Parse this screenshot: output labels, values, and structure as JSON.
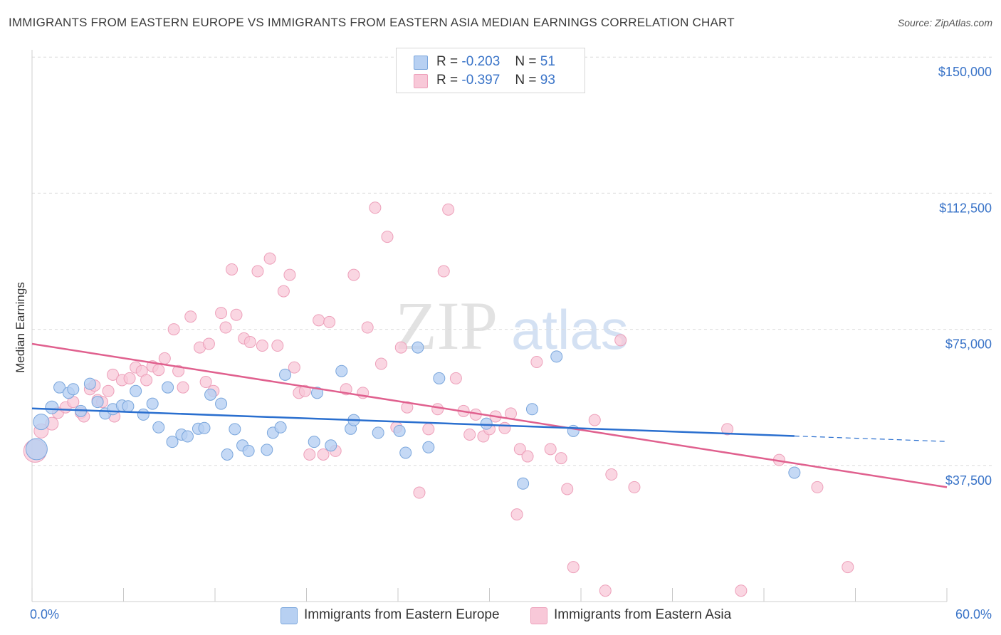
{
  "header": {
    "title": "IMMIGRANTS FROM EASTERN EUROPE VS IMMIGRANTS FROM EASTERN ASIA MEDIAN EARNINGS CORRELATION CHART",
    "source": "Source: ZipAtlas.com"
  },
  "watermark": {
    "zip": "ZIP",
    "atlas": "atlas"
  },
  "legend": {
    "rows": [
      {
        "r_label": "R =",
        "r_value": "-0.203",
        "n_label": "N =",
        "n_value": "51"
      },
      {
        "r_label": "R =",
        "r_value": "-0.397",
        "n_label": "N =",
        "n_value": "93"
      }
    ]
  },
  "bottom_legend": {
    "items": [
      {
        "label": "Immigrants from Eastern Europe"
      },
      {
        "label": "Immigrants from Eastern Asia"
      }
    ]
  },
  "colors": {
    "blue_fill": "#b7d0f2",
    "blue_stroke": "#7aa6dc",
    "blue_line": "#2a6fcf",
    "pink_fill": "#f8c8d8",
    "pink_stroke": "#eda0ba",
    "pink_line": "#e0608e",
    "axis_text": "#3a74c8",
    "grid": "#dcdcdc"
  },
  "chart_data": {
    "type": "scatter",
    "title": "IMMIGRANTS FROM EASTERN EUROPE VS IMMIGRANTS FROM EASTERN ASIA MEDIAN EARNINGS CORRELATION CHART",
    "xlabel": "",
    "ylabel": "Median Earnings",
    "xlim": [
      0,
      60
    ],
    "ylim": [
      0,
      152000
    ],
    "x_tick_labels": [
      {
        "value": 0,
        "label": "0.0%"
      },
      {
        "value": 60,
        "label": "60.0%"
      }
    ],
    "x_minor_ticks": [
      0,
      6,
      12,
      18,
      24,
      30,
      36,
      42,
      48,
      54,
      60
    ],
    "y_ticks": [
      {
        "value": 150000,
        "label": "$150,000"
      },
      {
        "value": 112500,
        "label": "$112,500"
      },
      {
        "value": 75000,
        "label": "$75,000"
      },
      {
        "value": 37500,
        "label": "$37,500"
      }
    ],
    "series": [
      {
        "name": "Immigrants from Eastern Europe",
        "color": "#b7d0f2",
        "trend": {
          "x1": 0,
          "y1": 53200,
          "x2": 50,
          "y2": 45600,
          "dash_to_x": 60,
          "dash_to_y": 44100
        },
        "points": [
          {
            "x": 0.3,
            "y": 42000,
            "s": 15
          },
          {
            "x": 0.6,
            "y": 49500,
            "s": 11
          },
          {
            "x": 1.3,
            "y": 53500,
            "s": 9
          },
          {
            "x": 1.8,
            "y": 59000,
            "s": 8
          },
          {
            "x": 2.4,
            "y": 57500,
            "s": 8
          },
          {
            "x": 2.7,
            "y": 58500,
            "s": 8
          },
          {
            "x": 3.2,
            "y": 52500,
            "s": 8
          },
          {
            "x": 3.8,
            "y": 60000,
            "s": 8
          },
          {
            "x": 4.3,
            "y": 55000,
            "s": 8
          },
          {
            "x": 4.8,
            "y": 51800,
            "s": 8
          },
          {
            "x": 5.3,
            "y": 53000,
            "s": 8
          },
          {
            "x": 5.9,
            "y": 54000,
            "s": 8
          },
          {
            "x": 6.3,
            "y": 53800,
            "s": 8
          },
          {
            "x": 6.8,
            "y": 58000,
            "s": 8
          },
          {
            "x": 7.3,
            "y": 51500,
            "s": 8
          },
          {
            "x": 7.9,
            "y": 54500,
            "s": 8
          },
          {
            "x": 8.3,
            "y": 48000,
            "s": 8
          },
          {
            "x": 8.9,
            "y": 59000,
            "s": 8
          },
          {
            "x": 9.2,
            "y": 44000,
            "s": 8
          },
          {
            "x": 9.8,
            "y": 46000,
            "s": 8
          },
          {
            "x": 10.2,
            "y": 45500,
            "s": 8
          },
          {
            "x": 10.9,
            "y": 47600,
            "s": 8
          },
          {
            "x": 11.3,
            "y": 47800,
            "s": 8
          },
          {
            "x": 11.7,
            "y": 57000,
            "s": 8
          },
          {
            "x": 12.4,
            "y": 54500,
            "s": 8
          },
          {
            "x": 12.8,
            "y": 40500,
            "s": 8
          },
          {
            "x": 13.3,
            "y": 47500,
            "s": 8
          },
          {
            "x": 13.8,
            "y": 43000,
            "s": 8
          },
          {
            "x": 14.2,
            "y": 41500,
            "s": 8
          },
          {
            "x": 15.4,
            "y": 41800,
            "s": 8
          },
          {
            "x": 15.8,
            "y": 46500,
            "s": 8
          },
          {
            "x": 16.3,
            "y": 48000,
            "s": 8
          },
          {
            "x": 16.6,
            "y": 62500,
            "s": 8
          },
          {
            "x": 18.5,
            "y": 44000,
            "s": 8
          },
          {
            "x": 18.7,
            "y": 57500,
            "s": 8
          },
          {
            "x": 19.6,
            "y": 43000,
            "s": 8
          },
          {
            "x": 20.3,
            "y": 63500,
            "s": 8
          },
          {
            "x": 20.9,
            "y": 47600,
            "s": 8
          },
          {
            "x": 21.1,
            "y": 50000,
            "s": 8
          },
          {
            "x": 22.7,
            "y": 46500,
            "s": 8
          },
          {
            "x": 24.1,
            "y": 47000,
            "s": 8
          },
          {
            "x": 24.5,
            "y": 41000,
            "s": 8
          },
          {
            "x": 25.3,
            "y": 70000,
            "s": 8
          },
          {
            "x": 26.0,
            "y": 42500,
            "s": 8
          },
          {
            "x": 26.7,
            "y": 61500,
            "s": 8
          },
          {
            "x": 29.8,
            "y": 49000,
            "s": 8
          },
          {
            "x": 32.2,
            "y": 32500,
            "s": 8
          },
          {
            "x": 32.8,
            "y": 53000,
            "s": 8
          },
          {
            "x": 34.4,
            "y": 67500,
            "s": 8
          },
          {
            "x": 35.5,
            "y": 47000,
            "s": 8
          },
          {
            "x": 50.0,
            "y": 35500,
            "s": 8
          }
        ]
      },
      {
        "name": "Immigrants from Eastern Asia",
        "color": "#f8c8d8",
        "trend": {
          "x1": 0,
          "y1": 71000,
          "x2": 60,
          "y2": 31500
        },
        "points": [
          {
            "x": 0.2,
            "y": 41500,
            "s": 16
          },
          {
            "x": 0.6,
            "y": 47000,
            "s": 10
          },
          {
            "x": 1.3,
            "y": 49000,
            "s": 9
          },
          {
            "x": 1.7,
            "y": 52000,
            "s": 8
          },
          {
            "x": 2.2,
            "y": 53500,
            "s": 8
          },
          {
            "x": 2.7,
            "y": 55000,
            "s": 8
          },
          {
            "x": 3.2,
            "y": 52000,
            "s": 8
          },
          {
            "x": 3.4,
            "y": 51000,
            "s": 8
          },
          {
            "x": 3.8,
            "y": 58500,
            "s": 8
          },
          {
            "x": 4.1,
            "y": 59500,
            "s": 8
          },
          {
            "x": 4.3,
            "y": 55500,
            "s": 8
          },
          {
            "x": 4.6,
            "y": 55000,
            "s": 8
          },
          {
            "x": 5.0,
            "y": 58000,
            "s": 8
          },
          {
            "x": 5.4,
            "y": 51000,
            "s": 8
          },
          {
            "x": 5.3,
            "y": 62500,
            "s": 8
          },
          {
            "x": 5.9,
            "y": 61000,
            "s": 8
          },
          {
            "x": 6.4,
            "y": 61500,
            "s": 8
          },
          {
            "x": 6.8,
            "y": 64500,
            "s": 8
          },
          {
            "x": 7.2,
            "y": 63500,
            "s": 8
          },
          {
            "x": 7.5,
            "y": 61000,
            "s": 8
          },
          {
            "x": 7.9,
            "y": 64800,
            "s": 8
          },
          {
            "x": 8.3,
            "y": 63800,
            "s": 8
          },
          {
            "x": 8.7,
            "y": 67000,
            "s": 8
          },
          {
            "x": 9.3,
            "y": 75000,
            "s": 8
          },
          {
            "x": 9.6,
            "y": 63500,
            "s": 8
          },
          {
            "x": 9.9,
            "y": 59000,
            "s": 8
          },
          {
            "x": 10.4,
            "y": 78500,
            "s": 8
          },
          {
            "x": 11.0,
            "y": 70000,
            "s": 8
          },
          {
            "x": 11.4,
            "y": 60500,
            "s": 8
          },
          {
            "x": 11.6,
            "y": 71000,
            "s": 8
          },
          {
            "x": 11.9,
            "y": 58000,
            "s": 8
          },
          {
            "x": 12.4,
            "y": 79500,
            "s": 8
          },
          {
            "x": 12.7,
            "y": 75500,
            "s": 8
          },
          {
            "x": 13.1,
            "y": 91500,
            "s": 8
          },
          {
            "x": 13.4,
            "y": 79000,
            "s": 8
          },
          {
            "x": 13.9,
            "y": 72500,
            "s": 8
          },
          {
            "x": 14.3,
            "y": 71500,
            "s": 8
          },
          {
            "x": 14.8,
            "y": 91000,
            "s": 8
          },
          {
            "x": 15.1,
            "y": 70500,
            "s": 8
          },
          {
            "x": 15.6,
            "y": 94500,
            "s": 8
          },
          {
            "x": 16.1,
            "y": 70500,
            "s": 8
          },
          {
            "x": 16.5,
            "y": 85500,
            "s": 8
          },
          {
            "x": 16.9,
            "y": 90000,
            "s": 8
          },
          {
            "x": 17.2,
            "y": 64500,
            "s": 8
          },
          {
            "x": 17.5,
            "y": 57500,
            "s": 8
          },
          {
            "x": 17.9,
            "y": 58000,
            "s": 8
          },
          {
            "x": 18.2,
            "y": 40500,
            "s": 8
          },
          {
            "x": 18.8,
            "y": 77500,
            "s": 8
          },
          {
            "x": 19.1,
            "y": 40500,
            "s": 8
          },
          {
            "x": 19.5,
            "y": 77000,
            "s": 8
          },
          {
            "x": 19.9,
            "y": 41500,
            "s": 8
          },
          {
            "x": 20.6,
            "y": 58500,
            "s": 8
          },
          {
            "x": 21.1,
            "y": 90000,
            "s": 8
          },
          {
            "x": 21.7,
            "y": 57500,
            "s": 8
          },
          {
            "x": 22.0,
            "y": 75500,
            "s": 8
          },
          {
            "x": 22.5,
            "y": 108500,
            "s": 8
          },
          {
            "x": 22.9,
            "y": 65500,
            "s": 8
          },
          {
            "x": 23.3,
            "y": 100500,
            "s": 8
          },
          {
            "x": 23.9,
            "y": 48000,
            "s": 8
          },
          {
            "x": 24.2,
            "y": 70000,
            "s": 8
          },
          {
            "x": 24.6,
            "y": 53500,
            "s": 8
          },
          {
            "x": 25.4,
            "y": 30000,
            "s": 8
          },
          {
            "x": 26.0,
            "y": 47500,
            "s": 8
          },
          {
            "x": 26.6,
            "y": 53000,
            "s": 8
          },
          {
            "x": 27.0,
            "y": 91000,
            "s": 8
          },
          {
            "x": 27.3,
            "y": 108000,
            "s": 8
          },
          {
            "x": 27.8,
            "y": 61500,
            "s": 8
          },
          {
            "x": 28.3,
            "y": 52500,
            "s": 8
          },
          {
            "x": 28.7,
            "y": 46000,
            "s": 8
          },
          {
            "x": 29.1,
            "y": 51500,
            "s": 8
          },
          {
            "x": 29.6,
            "y": 45500,
            "s": 8
          },
          {
            "x": 30.0,
            "y": 47500,
            "s": 8
          },
          {
            "x": 30.4,
            "y": 51000,
            "s": 8
          },
          {
            "x": 31.0,
            "y": 47800,
            "s": 8
          },
          {
            "x": 31.4,
            "y": 51800,
            "s": 8
          },
          {
            "x": 31.8,
            "y": 24000,
            "s": 8
          },
          {
            "x": 32.0,
            "y": 42000,
            "s": 8
          },
          {
            "x": 32.5,
            "y": 40000,
            "s": 8
          },
          {
            "x": 33.1,
            "y": 66000,
            "s": 8
          },
          {
            "x": 34.0,
            "y": 42000,
            "s": 8
          },
          {
            "x": 34.7,
            "y": 39500,
            "s": 8
          },
          {
            "x": 35.1,
            "y": 31000,
            "s": 8
          },
          {
            "x": 35.5,
            "y": 9500,
            "s": 8
          },
          {
            "x": 36.9,
            "y": 50000,
            "s": 8
          },
          {
            "x": 37.6,
            "y": 3000,
            "s": 8
          },
          {
            "x": 38.0,
            "y": 35000,
            "s": 8
          },
          {
            "x": 38.6,
            "y": 72000,
            "s": 8
          },
          {
            "x": 39.5,
            "y": 31500,
            "s": 8
          },
          {
            "x": 45.6,
            "y": 47500,
            "s": 8
          },
          {
            "x": 46.5,
            "y": 3000,
            "s": 8
          },
          {
            "x": 49.0,
            "y": 39000,
            "s": 8
          },
          {
            "x": 51.5,
            "y": 31500,
            "s": 8
          },
          {
            "x": 53.5,
            "y": 9500,
            "s": 8
          }
        ]
      }
    ]
  }
}
